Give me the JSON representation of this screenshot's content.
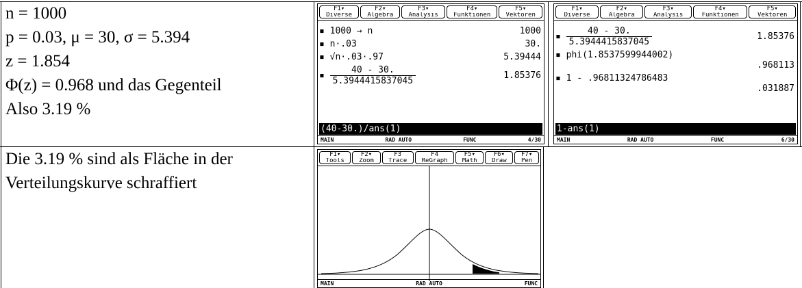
{
  "notes": {
    "lines": [
      "n = 1000",
      "p = 0.03, μ = 30, σ = 5.394",
      "z = 1.854",
      "Φ(z) = 0.968 und das Gegenteil",
      "Also 3.19 %"
    ]
  },
  "graph_caption": {
    "lines": [
      "Die 3.19 % sind als Fläche in der",
      "Verteilungskurve schraffiert"
    ]
  },
  "screens": [
    {
      "toolbar": [
        {
          "key": "F1▾",
          "label": "Diverse"
        },
        {
          "key": "F2▾",
          "label": "Algebra"
        },
        {
          "key": "F3▾",
          "label": "Analysis"
        },
        {
          "key": "F4▾",
          "label": "Funktionen"
        },
        {
          "key": "F5▾",
          "label": "Vektoren"
        }
      ],
      "history": [
        {
          "input": "1000 → n",
          "result": "1000"
        },
        {
          "input": "n·.03",
          "result": "30."
        },
        {
          "input": "√n·.03·.97",
          "result": "5.39444"
        },
        {
          "numerator": "40 - 30.",
          "denominator": "5.3944415837045",
          "result": "1.85376"
        }
      ],
      "entry": "(40-30.)/ans(1)",
      "status": [
        "MAIN",
        "RAD AUTO",
        "FUNC",
        "4/30"
      ]
    },
    {
      "toolbar": [
        {
          "key": "F1▾",
          "label": "Diverse"
        },
        {
          "key": "F2▾",
          "label": "Algebra"
        },
        {
          "key": "F3▾",
          "label": "Analysis"
        },
        {
          "key": "F4▾",
          "label": "Funktionen"
        },
        {
          "key": "F5▾",
          "label": "Vektoren"
        }
      ],
      "history": [
        {
          "numerator": "40 - 30.",
          "denominator": "5.3944415837045",
          "result": "1.85376"
        },
        {
          "input": "phi(1.8537599944002)",
          "result": ".968113"
        },
        {
          "input": "1 - .96811324786483",
          "result": ".031887"
        }
      ],
      "entry": "1-ans(1)",
      "status": [
        "MAIN",
        "RAD AUTO",
        "FUNC",
        "6/30"
      ]
    },
    {
      "toolbar": [
        {
          "key": "F1▾",
          "label": "Tools"
        },
        {
          "key": "F2▾",
          "label": "Zoom"
        },
        {
          "key": "F3",
          "label": "Trace"
        },
        {
          "key": "F4",
          "label": "ReGraph"
        },
        {
          "key": "F5▾",
          "label": "Math"
        },
        {
          "key": "F6▾",
          "label": "Draw"
        },
        {
          "key": "F7▾",
          "label": "Pen"
        }
      ],
      "status": [
        "MAIN",
        "RAD AUTO",
        "FUNC"
      ]
    }
  ]
}
